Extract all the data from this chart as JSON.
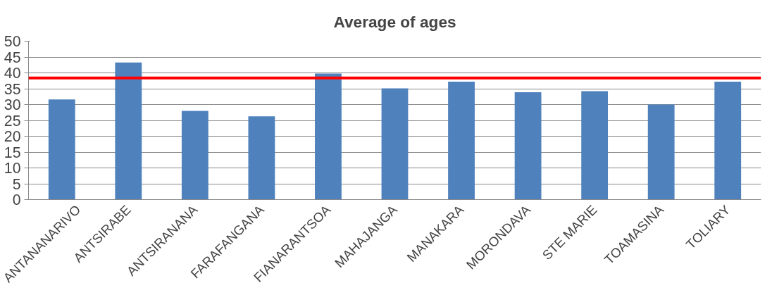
{
  "chart_data": {
    "type": "bar",
    "title": "Average of ages",
    "categories": [
      "ANTANANARIVO",
      "ANTSIRABE",
      "ANTSIRANANA",
      "FARAFANGANA",
      "FIANARANTSOA",
      "MAHAJANGA",
      "MANAKARA",
      "MORONDAVA",
      "STE MARIE",
      "TOAMASINA",
      "TOLIARY"
    ],
    "values": [
      31.6,
      43.3,
      28.0,
      26.3,
      39.8,
      35.1,
      37.2,
      33.9,
      34.2,
      30.0,
      37.2
    ],
    "color": "#4f81bd",
    "ylim": [
      0,
      50
    ],
    "yticks": [
      0,
      5,
      10,
      15,
      20,
      25,
      30,
      35,
      40,
      45,
      50
    ],
    "grid": "y",
    "ref_lines": [
      {
        "axis": "y",
        "value": 38.4,
        "color": "#ff0000"
      }
    ]
  }
}
